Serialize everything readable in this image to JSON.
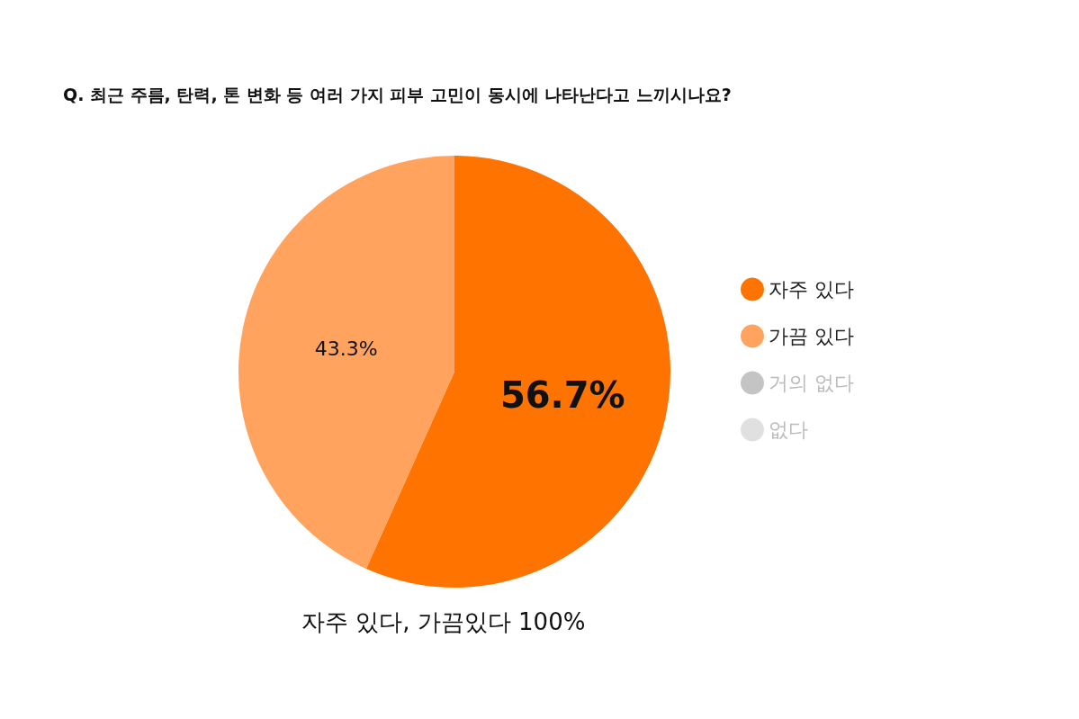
{
  "chart_data": {
    "type": "pie",
    "title": "Q. 최근 주름, 탄력, 톤 변화 등 여러 가지 피부 고민이 동시에 나타난다고 느끼시나요?",
    "categories": [
      "자주 있다",
      "가끔 있다",
      "거의 없다",
      "없다"
    ],
    "values": [
      56.7,
      43.3,
      0,
      0
    ],
    "colors": [
      "#ff7300",
      "#ffa35f",
      "#c4c4c4",
      "#e0e0e0"
    ],
    "value_labels": [
      "56.7%",
      "43.3%",
      null,
      null
    ],
    "annotations": [
      "자주 있다, 가끔있다 100%"
    ],
    "legend": "right"
  }
}
